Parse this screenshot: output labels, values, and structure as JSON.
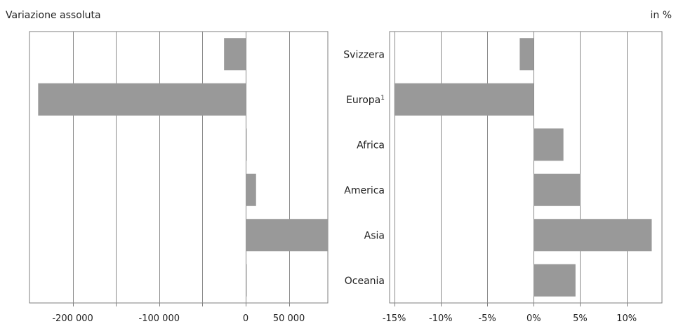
{
  "header": {
    "left_label": "Variazione assoluta",
    "right_label": "in %"
  },
  "chart_data": [
    {
      "type": "bar",
      "orientation": "horizontal",
      "categories": [
        "Svizzera",
        "Europa",
        "Africa",
        "America",
        "Asia",
        "Oceania"
      ],
      "values": [
        -25000,
        -240000,
        0,
        12000,
        95000,
        1000
      ],
      "xlim": [
        -250000,
        95000
      ],
      "xticks": [
        -200000,
        -100000,
        0,
        50000
      ],
      "xtick_labels": [
        "-200 000",
        "-100 000",
        "0",
        "50 000"
      ],
      "grid_values": [
        -200000,
        -150000,
        -100000,
        -50000,
        0,
        50000
      ],
      "grid": true,
      "bar_color": "#999999"
    },
    {
      "type": "bar",
      "orientation": "horizontal",
      "categories": [
        "Svizzera",
        "Europa",
        "Africa",
        "America",
        "Asia",
        "Oceania"
      ],
      "category_labels": [
        "Svizzera",
        "Europa",
        "Africa",
        "America",
        "Asia",
        "Oceania"
      ],
      "category_superscripts": [
        "",
        "1",
        "",
        "",
        "",
        ""
      ],
      "values": [
        -1.5,
        -15.0,
        3.2,
        5.0,
        12.7,
        4.5
      ],
      "xlim": [
        -15.5,
        13.8
      ],
      "xticks": [
        -15,
        -10,
        -5,
        0,
        5,
        10
      ],
      "xtick_labels": [
        "-15%",
        "-10%",
        "-5%",
        "0%",
        "5%",
        "10%"
      ],
      "grid_values": [
        -15,
        -10,
        -5,
        0,
        5,
        10
      ],
      "grid": true,
      "bar_color": "#999999"
    }
  ]
}
